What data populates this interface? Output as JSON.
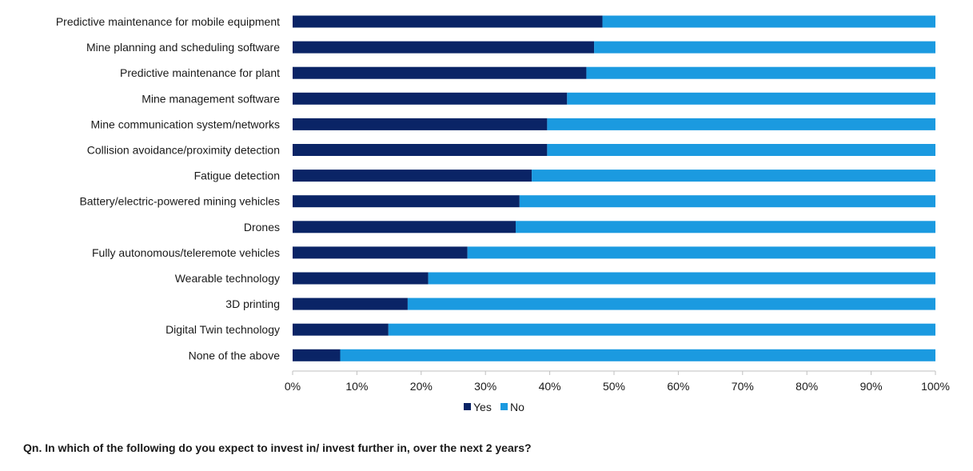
{
  "colors": {
    "yes": "#0a2466",
    "no": "#1b9ae0",
    "axis": "#bfbfbf",
    "text": "#1a1a1a"
  },
  "footnote": "Qn. In which of the following do you expect to invest in/ invest further in, over the next 2 years?",
  "chart_data": {
    "type": "bar",
    "orientation": "horizontal",
    "stacked": "percent",
    "title": "",
    "xlabel": "",
    "ylabel": "",
    "xlim": [
      0,
      100
    ],
    "x_ticks": [
      "0%",
      "10%",
      "20%",
      "30%",
      "40%",
      "50%",
      "60%",
      "70%",
      "80%",
      "90%",
      "100%"
    ],
    "grid": false,
    "legend_position": "bottom",
    "categories": [
      "Predictive maintenance for mobile equipment",
      "Mine planning and scheduling software",
      "Predictive maintenance for plant",
      "Mine management software",
      "Mine communication system/networks",
      "Collision avoidance/proximity detection",
      "Fatigue detection",
      "Battery/electric-powered mining vehicles",
      "Drones",
      "Fully autonomous/teleremote vehicles",
      "Wearable technology",
      "3D printing",
      "Digital Twin technology",
      "None of the above"
    ],
    "series": [
      {
        "name": "Yes",
        "values": [
          48.2,
          46.9,
          45.7,
          42.7,
          39.6,
          39.6,
          37.2,
          35.3,
          34.7,
          27.2,
          21.1,
          17.9,
          14.9,
          7.4
        ]
      },
      {
        "name": "No",
        "values": [
          51.8,
          53.1,
          54.3,
          57.3,
          60.4,
          60.4,
          62.8,
          64.7,
          65.3,
          72.8,
          78.9,
          82.1,
          85.1,
          92.6
        ]
      }
    ]
  }
}
